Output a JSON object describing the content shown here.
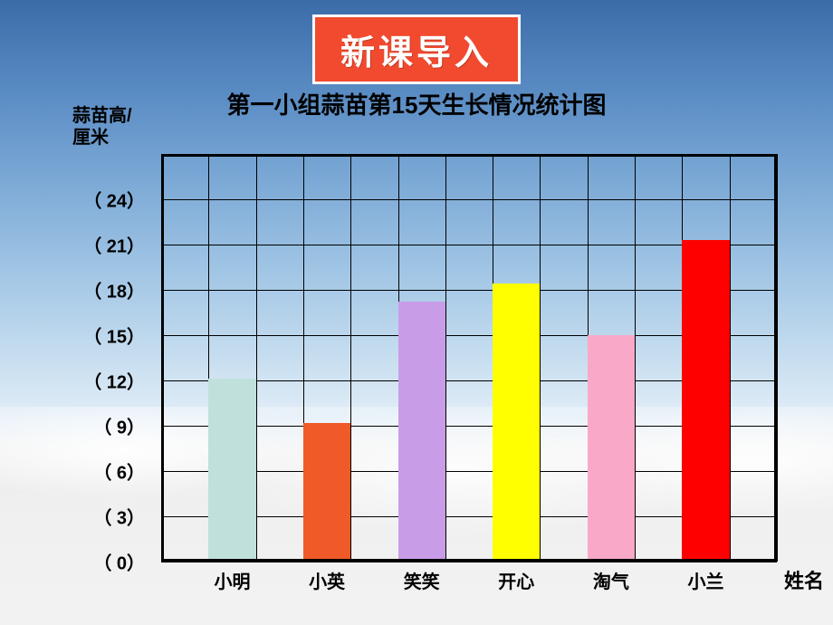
{
  "banner": {
    "text": "新课导入",
    "bg_color": "#f24a2f",
    "border_color": "#ffffff",
    "text_color": "#ffffff",
    "fontsize": 38
  },
  "chart": {
    "type": "bar",
    "title": "第一小组蒜苗第15天生长情况统计图",
    "title_fontsize": 26,
    "y_axis_label_line1": "蒜苗高/",
    "y_axis_label_line2": "厘米",
    "x_axis_label": "姓名",
    "label_fontsize": 20,
    "y_ticks": [
      0,
      3,
      6,
      9,
      12,
      15,
      18,
      21,
      24
    ],
    "y_tick_format_prefix": "（",
    "y_tick_format_between": " ",
    "y_tick_format_suffix": "）",
    "y_max": 27,
    "grid_rows": 9,
    "grid_cols": 13,
    "grid_color": "#000000",
    "background_color": "transparent",
    "axis_line_width": 3,
    "bar_width_cols": 1,
    "categories": [
      "小明",
      "小英",
      "笑笑",
      "开心",
      "淘气",
      "小兰"
    ],
    "values": [
      12.1,
      9.2,
      17.2,
      18.4,
      15.0,
      21.3
    ],
    "bar_colors": [
      "#c0e0dc",
      "#f05a28",
      "#c99ce8",
      "#ffff00",
      "#f9a8c8",
      "#ff0000"
    ],
    "bar_positions_col": [
      1,
      3,
      5,
      7,
      9,
      11
    ]
  }
}
